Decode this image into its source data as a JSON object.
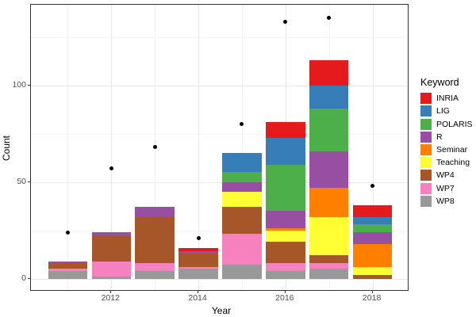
{
  "chart": {
    "y_axis": {
      "label": "Count",
      "tick_labels": [
        "0",
        "50",
        "100"
      ],
      "tick_values": [
        0,
        50,
        100
      ]
    },
    "x_axis": {
      "label": "Year",
      "tick_labels": [
        "2012",
        "2014",
        "2016",
        "2018"
      ],
      "tick_values": [
        2012,
        2014,
        2016,
        2018
      ]
    },
    "legend": {
      "title": "Keyword",
      "items": [
        {
          "label": "INRIA",
          "color": "#E41A1C"
        },
        {
          "label": "LIG",
          "color": "#377EB8"
        },
        {
          "label": "POLARIS",
          "color": "#4DAF4A"
        },
        {
          "label": "R",
          "color": "#984EA3"
        },
        {
          "label": "Seminar",
          "color": "#FF7F00"
        },
        {
          "label": "Teaching",
          "color": "#FFFF33"
        },
        {
          "label": "WP4",
          "color": "#A65628"
        },
        {
          "label": "WP7",
          "color": "#F781BF"
        },
        {
          "label": "WP8",
          "color": "#999999"
        }
      ]
    }
  },
  "chart_data": {
    "type": "bar",
    "stacked": true,
    "stack_order": "bottom-to-top",
    "title": "",
    "xlabel": "Year",
    "ylabel": "Count",
    "legend_title": "Keyword",
    "legend_position": "right",
    "categories": [
      2011,
      2012,
      2013,
      2014,
      2015,
      2016,
      2017,
      2018
    ],
    "series": [
      {
        "name": "WP8",
        "color": "#999999",
        "values": [
          4,
          1,
          4,
          5,
          7,
          4,
          5,
          0
        ]
      },
      {
        "name": "WP7",
        "color": "#F781BF",
        "values": [
          1,
          8,
          4,
          1,
          16,
          4,
          3,
          0
        ]
      },
      {
        "name": "WP4",
        "color": "#A65628",
        "values": [
          3,
          13,
          24,
          7,
          14,
          11,
          4,
          2
        ]
      },
      {
        "name": "Teaching",
        "color": "#FFFF33",
        "values": [
          0,
          0,
          0,
          0,
          8,
          6,
          20,
          4
        ]
      },
      {
        "name": "Seminar",
        "color": "#FF7F00",
        "values": [
          0,
          0,
          0,
          0,
          0,
          1,
          15,
          12
        ]
      },
      {
        "name": "R",
        "color": "#984EA3",
        "values": [
          1,
          2,
          5,
          1,
          5,
          9,
          19,
          6
        ]
      },
      {
        "name": "POLARIS",
        "color": "#4DAF4A",
        "values": [
          0,
          0,
          0,
          0,
          5,
          24,
          22,
          4
        ]
      },
      {
        "name": "LIG",
        "color": "#377EB8",
        "values": [
          0,
          0,
          0,
          0,
          10,
          14,
          12,
          4
        ]
      },
      {
        "name": "INRIA",
        "color": "#E41A1C",
        "values": [
          0,
          0,
          0,
          2,
          0,
          8,
          13,
          6
        ]
      }
    ],
    "bar_totals": [
      9,
      24,
      37,
      16,
      65,
      81,
      113,
      38
    ],
    "scatter_points": {
      "name": "dots",
      "color": "#000000",
      "x": [
        2011,
        2012,
        2013,
        2014,
        2015,
        2016,
        2017,
        2018
      ],
      "values": [
        24,
        57,
        68,
        21,
        80,
        133,
        135,
        48
      ]
    },
    "y_major_gridlines": [
      0,
      50,
      100
    ],
    "y_minor_gridlines": [
      25,
      75,
      125
    ],
    "x_major_gridlines": [
      2012,
      2014,
      2016,
      2018
    ],
    "x_minor_gridlines": [
      2011,
      2013,
      2015,
      2017
    ],
    "ylim": [
      0,
      142
    ],
    "grid": true,
    "bar_width_fraction": 0.9
  }
}
